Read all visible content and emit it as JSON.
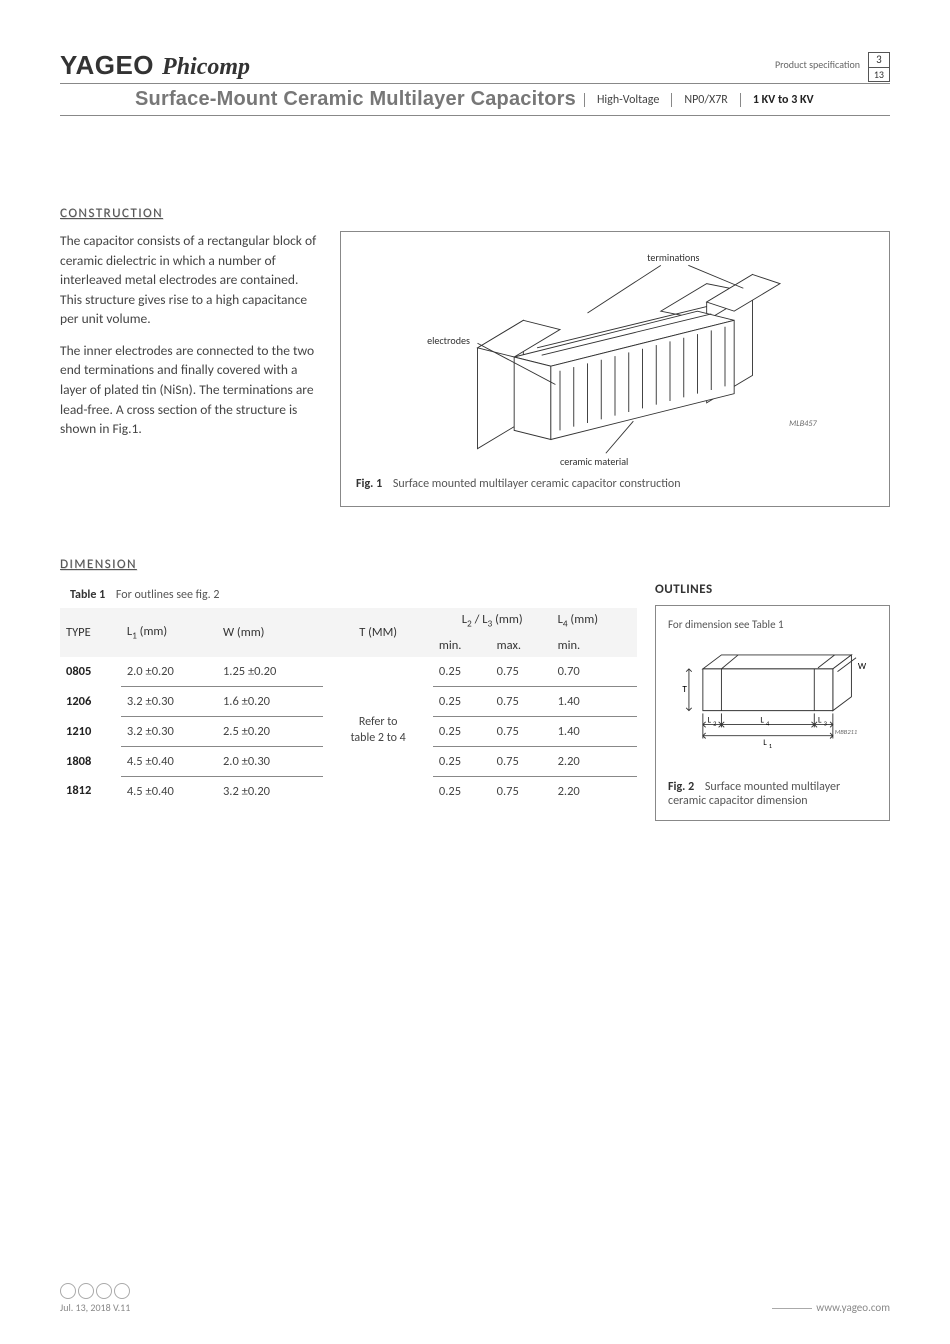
{
  "header": {
    "brand1": "YAGEO",
    "brand2": "Phicomp",
    "spec_label": "Product specification",
    "page": "3",
    "total": "13",
    "title": "Surface-Mount Ceramic Multilayer Capacitors",
    "cells": [
      "High-Voltage",
      "NP0/X7R",
      "1 KV to 3 KV"
    ]
  },
  "construction": {
    "heading": "CONSTRUCTION",
    "p1": "The capacitor consists of a rectangular block of ceramic dielectric in which a number of interleaved metal electrodes are contained. This structure gives rise to a high capacitance per unit volume.",
    "p2": "The inner electrodes are connected to the two end terminations and finally covered with a layer of plated tin (NiSn). The terminations are lead-free. A cross section of the structure is shown in Fig.1.",
    "fig_num": "Fig. 1",
    "fig_caption": "Surface mounted multilayer ceramic capacitor construction",
    "labels": {
      "terminations": "terminations",
      "electrodes": "electrodes",
      "ceramic": "ceramic material",
      "code": "MLB457"
    }
  },
  "dimension": {
    "heading": "DIMENSION",
    "table_num": "Table 1",
    "table_caption": "For outlines see fig. 2",
    "columns": {
      "type": "TYPE",
      "l1_label": "L",
      "l1_sub": "1",
      "l1_unit": " (mm)",
      "w": "W (mm)",
      "t": "T (MM)",
      "l23_label_a": "L",
      "l23_sub_a": "2",
      "l23_slash": " / L",
      "l23_sub_b": "3",
      "l23_unit": " (mm)",
      "l4_label": "L",
      "l4_sub": "4",
      "l4_unit": " (mm)",
      "min": "min.",
      "max": "max.",
      "min2": "min."
    },
    "t_value": "Refer to table 2 to 4",
    "rows": [
      {
        "type": "0805",
        "l1": "2.0 ±0.20",
        "w": "1.25 ±0.20",
        "l23min": "0.25",
        "l23max": "0.75",
        "l4": "0.70"
      },
      {
        "type": "1206",
        "l1": "3.2 ±0.30",
        "w": "1.6 ±0.20",
        "l23min": "0.25",
        "l23max": "0.75",
        "l4": "1.40"
      },
      {
        "type": "1210",
        "l1": "3.2 ±0.30",
        "w": "2.5 ±0.20",
        "l23min": "0.25",
        "l23max": "0.75",
        "l4": "1.40"
      },
      {
        "type": "1808",
        "l1": "4.5 ±0.40",
        "w": "2.0 ±0.30",
        "l23min": "0.25",
        "l23max": "0.75",
        "l4": "2.20"
      },
      {
        "type": "1812",
        "l1": "4.5 ±0.40",
        "w": "3.2 ±0.20",
        "l23min": "0.25",
        "l23max": "0.75",
        "l4": "2.20"
      }
    ]
  },
  "outlines": {
    "heading": "OUTLINES",
    "note": "For dimension see Table 1",
    "fig_num": "Fig. 2",
    "fig_caption": "Surface mounted multilayer ceramic capacitor dimension",
    "labels": {
      "T": "T",
      "W": "W",
      "L1": "L",
      "L2": "L",
      "L3": "L",
      "L4": "L",
      "code": "MBB211"
    }
  },
  "footer": {
    "date": "Jul. 13, 2018 V.11",
    "url": "www.yageo.com"
  }
}
